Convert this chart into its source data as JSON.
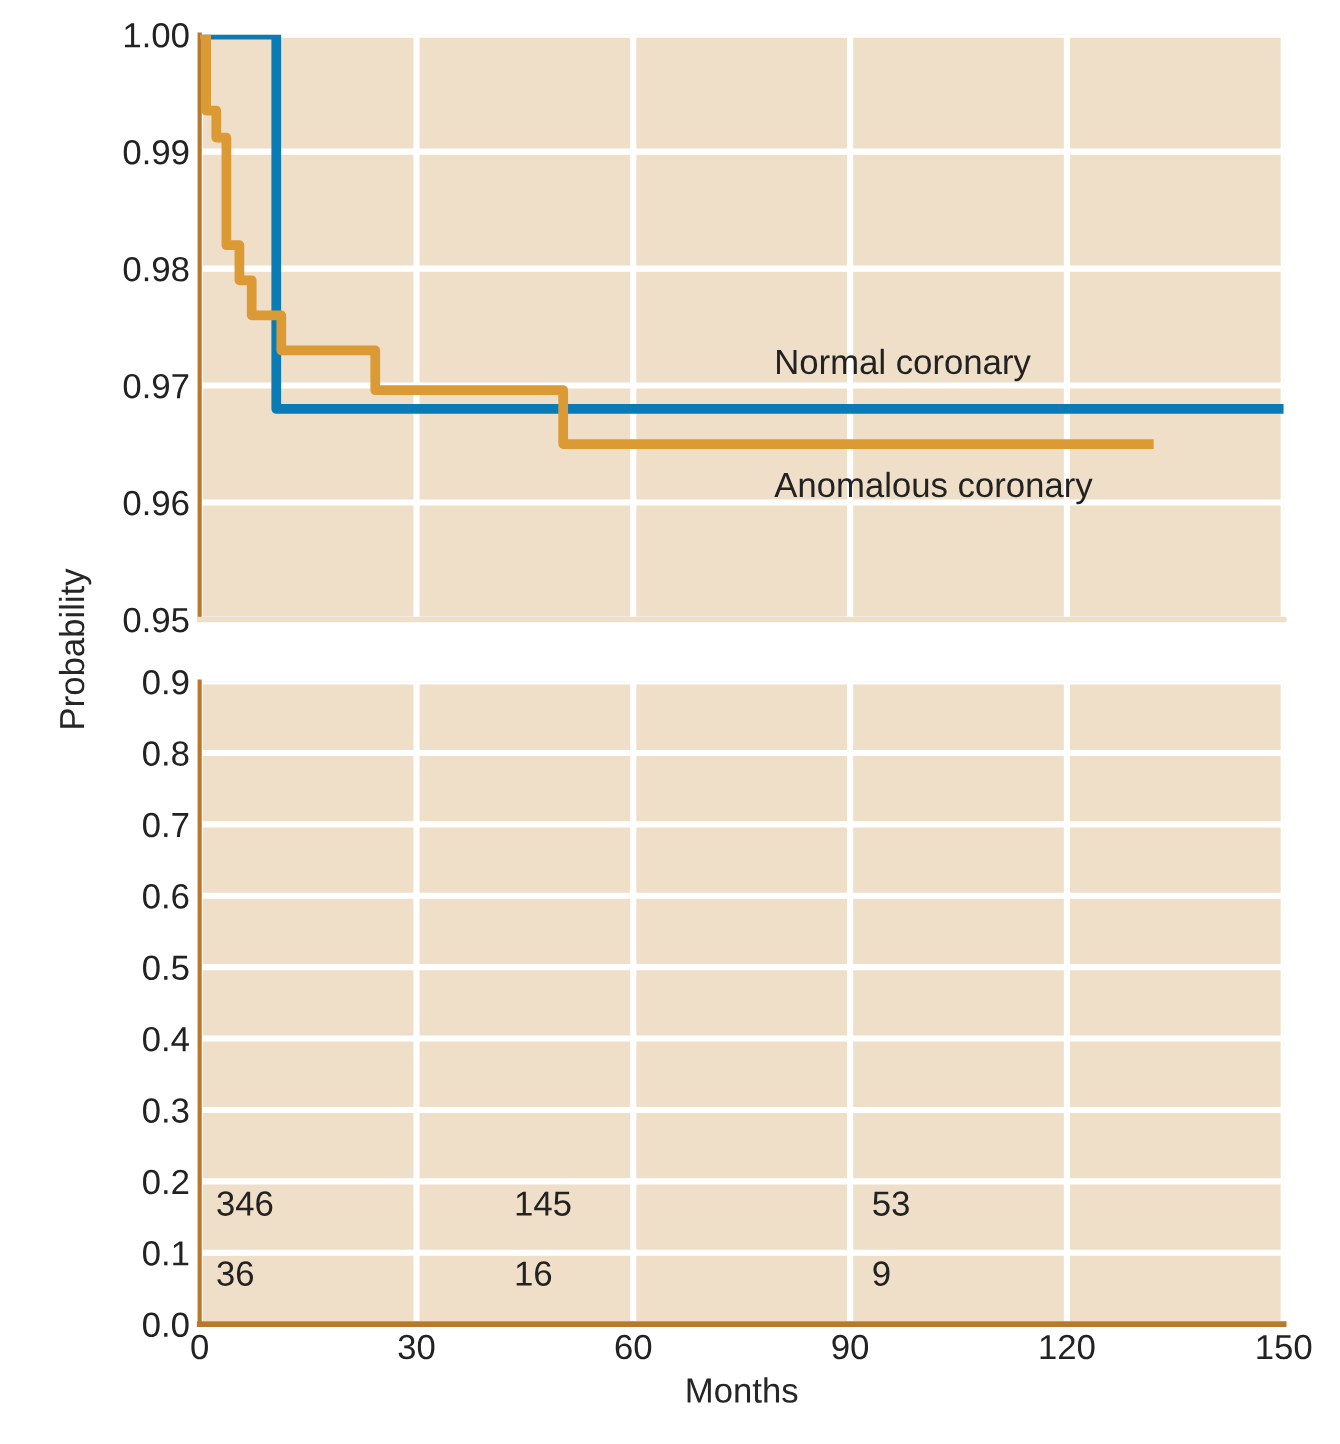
{
  "chart_data": [
    {
      "type": "step",
      "xlim": [
        0,
        150
      ],
      "xticks": [
        0,
        30,
        60,
        90,
        120,
        150
      ],
      "ylim": [
        0.95,
        1.0
      ],
      "yticks": [
        {
          "value": 0.95,
          "label": "0.95"
        },
        {
          "value": 0.96,
          "label": "0.96"
        },
        {
          "value": 0.97,
          "label": "0.97"
        },
        {
          "value": 0.98,
          "label": "0.98"
        },
        {
          "value": 0.99,
          "label": "0.99"
        },
        {
          "value": 1.0,
          "label": "1.00"
        }
      ],
      "tick_labels": "y",
      "grid": true,
      "legend": false,
      "series": [
        {
          "name": "Normal coronary",
          "color": "#0a7bb5",
          "x": [
            0,
            10.6,
            150
          ],
          "values": [
            1.0,
            0.968,
            0.968
          ]
        },
        {
          "name": "Anomalous coronary",
          "color": "#dc9a34",
          "x": [
            0,
            0.9,
            2.3,
            3.7,
            5.5,
            7.2,
            11.3,
            24.3,
            50.3,
            132
          ],
          "values": [
            1.0,
            0.9935,
            0.9912,
            0.982,
            0.979,
            0.976,
            0.973,
            0.9696,
            0.965,
            0.965
          ]
        }
      ]
    },
    {
      "type": "step",
      "xlim": [
        0,
        150
      ],
      "xticks": [
        0,
        30,
        60,
        90,
        120,
        150
      ],
      "ylim": [
        0,
        0.9
      ],
      "yticks": [
        {
          "value": 0,
          "label": "0.0"
        },
        {
          "value": 0.1,
          "label": "0.1"
        },
        {
          "value": 0.2,
          "label": "0.2"
        },
        {
          "value": 0.3,
          "label": "0.3"
        },
        {
          "value": 0.4,
          "label": "0.4"
        },
        {
          "value": 0.5,
          "label": "0.5"
        },
        {
          "value": 0.6,
          "label": "0.6"
        },
        {
          "value": 0.7,
          "label": "0.7"
        },
        {
          "value": 0.8,
          "label": "0.8"
        },
        {
          "value": 0.9,
          "label": "0.9"
        }
      ],
      "xlabel": "Months",
      "ylabel": "Probability",
      "grid": true,
      "legend": false,
      "annotations": [
        "346",
        "145",
        "53",
        "36",
        "16",
        "9"
      ]
    }
  ]
}
